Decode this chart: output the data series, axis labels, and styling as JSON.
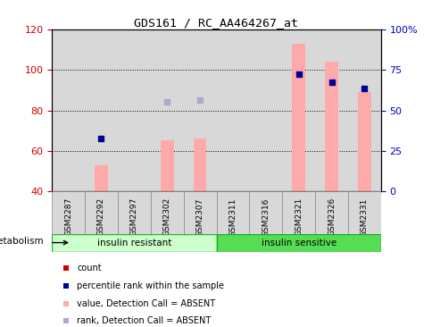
{
  "title": "GDS161 / RC_AA464267_at",
  "samples": [
    "GSM2287",
    "GSM2292",
    "GSM2297",
    "GSM2302",
    "GSM2307",
    "GSM2311",
    "GSM2316",
    "GSM2321",
    "GSM2326",
    "GSM2331"
  ],
  "bar_values": [
    null,
    53,
    null,
    65,
    66,
    null,
    null,
    113,
    104,
    89
  ],
  "rank_dots": [
    null,
    66,
    null,
    null,
    null,
    null,
    null,
    98,
    94,
    91
  ],
  "bar_base": 40,
  "rank_dots_blue": [
    null,
    null,
    null,
    84,
    85,
    null,
    null,
    null,
    null,
    null
  ],
  "ylim": [
    40,
    120
  ],
  "ylim_right": [
    0,
    100
  ],
  "yticks_left": [
    40,
    60,
    80,
    100,
    120
  ],
  "yticks_right": [
    0,
    25,
    50,
    75,
    100
  ],
  "ytick_right_labels": [
    "0",
    "25",
    "50",
    "75",
    "100%"
  ],
  "group1_label": "insulin resistant",
  "group2_label": "insulin sensitive",
  "group1_color": "#ccffcc",
  "group2_color": "#55dd55",
  "metabolism_label": "metabolism",
  "bar_color": "#ffaaaa",
  "rank_dot_color": "#000099",
  "rank_dot_blue_color": "#aaaacc",
  "legend_items": [
    "count",
    "percentile rank within the sample",
    "value, Detection Call = ABSENT",
    "rank, Detection Call = ABSENT"
  ],
  "legend_colors": [
    "#cc0000",
    "#000099",
    "#ffaaaa",
    "#aaaacc"
  ],
  "background_color": "#ffffff",
  "col_bg_color": "#d8d8d8",
  "grid_color": "#000000",
  "tick_label_color_left": "#cc0000",
  "tick_label_color_right": "#0000cc",
  "fig_width": 4.85,
  "fig_height": 3.66,
  "dpi": 100
}
